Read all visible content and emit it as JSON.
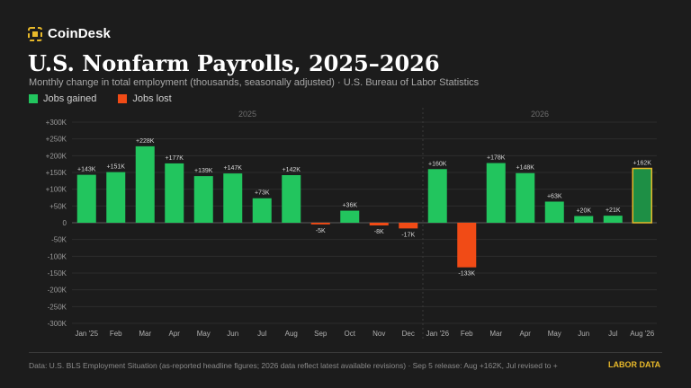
{
  "brand": {
    "name": "CoinDesk",
    "accent": "#e8b92a"
  },
  "title": "U.S. Nonfarm Payrolls, 2025–2026",
  "subtitle": "Monthly change in total employment (thousands, seasonally adjusted) · U.S. Bureau of Labor Statistics",
  "legend": {
    "gained": {
      "label": "Jobs gained",
      "color": "#22c55e"
    },
    "lost": {
      "label": "Jobs lost",
      "color": "#f14b16"
    }
  },
  "footer": {
    "text": "Data: U.S. BLS Employment Situation (as-reported headline figures; 2026 data reflect latest available revisions) · Sep 5 release: Aug +162K, Jul revised to +",
    "tag": "LABOR DATA"
  },
  "chart_data": {
    "type": "bar",
    "groups": [
      {
        "label": "2025",
        "categories": [
          "Jan '25",
          "Feb",
          "Mar",
          "Apr",
          "May",
          "Jun",
          "Jul",
          "Aug",
          "Sep",
          "Oct",
          "Nov",
          "Dec"
        ]
      },
      {
        "label": "2026",
        "categories": [
          "Jan '26",
          "Feb",
          "Mar",
          "Apr",
          "May",
          "Jun",
          "Jul",
          "Aug '26"
        ]
      }
    ],
    "categories": [
      "Jan '25",
      "Feb",
      "Mar",
      "Apr",
      "May",
      "Jun",
      "Jul",
      "Aug",
      "Sep",
      "Oct",
      "Nov",
      "Dec",
      "Jan '26",
      "Feb",
      "Mar",
      "Apr",
      "May",
      "Jun",
      "Jul",
      "Aug '26"
    ],
    "values": [
      143,
      151,
      228,
      177,
      139,
      147,
      73,
      142,
      -5,
      36,
      -8,
      -17,
      160,
      -133,
      178,
      148,
      63,
      20,
      21,
      162
    ],
    "data_labels": [
      "+143K",
      "+151K",
      "+228K",
      "+177K",
      "+139K",
      "+147K",
      "+73K",
      "+142K",
      "-5K",
      "+36K",
      "-8K",
      "-17K",
      "+160K",
      "-133K",
      "+178K",
      "+148K",
      "+63K",
      "+20K",
      "+21K",
      "+162K"
    ],
    "highlight_index": 19,
    "ylim": [
      -300,
      300
    ],
    "yticks": [
      300,
      250,
      200,
      150,
      100,
      50,
      0,
      -50,
      -100,
      -150,
      -200,
      -250,
      -300
    ],
    "ytick_labels": [
      "+300K",
      "+250K",
      "+200K",
      "+150K",
      "+100K",
      "+50K",
      "0",
      "-50K",
      "-100K",
      "-150K",
      "-200K",
      "-250K",
      "-300K"
    ],
    "grid": true,
    "colors": {
      "gained": "#22c55e",
      "lost": "#f14b16",
      "highlight_fill": "#1e8f45",
      "highlight_border": "#e8b92a"
    }
  }
}
